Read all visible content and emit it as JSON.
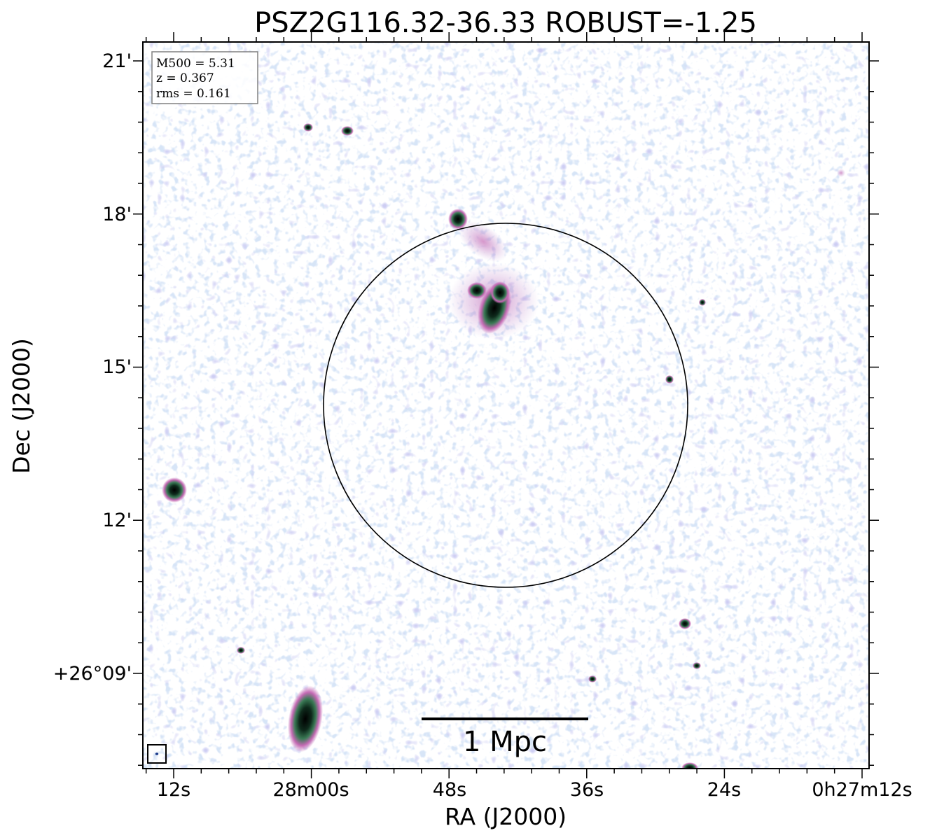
{
  "chart_data": {
    "type": "heatmap",
    "title": "PSZ2G116.32-36.33 ROBUST=-1.25",
    "xlabel": "RA (J2000)",
    "ylabel": "Dec (J2000)",
    "x_ticks": [
      "12s",
      "28m00s",
      "48s",
      "36s",
      "24s",
      "0h27m12s"
    ],
    "y_ticks": [
      "21'",
      "18'",
      "15'",
      "12'",
      "+26°09'"
    ],
    "info": [
      "M500 = 5.31",
      "z = 0.367",
      "rms = 0.161"
    ],
    "scale_bar_label": "1 Mpc",
    "colormap": [
      "#bcd8ee",
      "#a8b4e8",
      "#b88ad0",
      "#c46ab4",
      "#3a7a55",
      "#000000"
    ],
    "circle_color": "#000000"
  }
}
